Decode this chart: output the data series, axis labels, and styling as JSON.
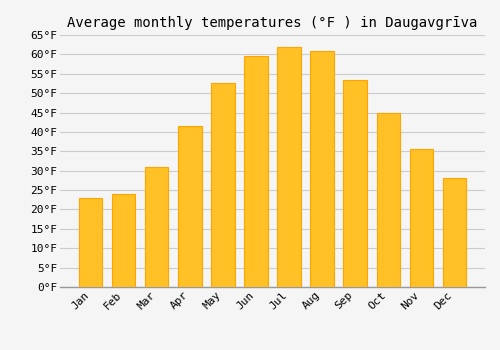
{
  "title": "Average monthly temperatures (°F ) in Daugavgrīva",
  "months": [
    "Jan",
    "Feb",
    "Mar",
    "Apr",
    "May",
    "Jun",
    "Jul",
    "Aug",
    "Sep",
    "Oct",
    "Nov",
    "Dec"
  ],
  "values": [
    23,
    24,
    31,
    41.5,
    52.5,
    59.5,
    62,
    61,
    53.5,
    45,
    35.5,
    28
  ],
  "bar_color": "#FFC125",
  "bar_edge_color": "#FFA500",
  "ylim": [
    0,
    65
  ],
  "yticks": [
    0,
    5,
    10,
    15,
    20,
    25,
    30,
    35,
    40,
    45,
    50,
    55,
    60,
    65
  ],
  "background_color": "#f5f5f5",
  "grid_color": "#cccccc",
  "title_fontsize": 10,
  "tick_fontsize": 8,
  "title_font": "monospace",
  "tick_font": "monospace",
  "figsize": [
    5.0,
    3.5
  ],
  "dpi": 100
}
